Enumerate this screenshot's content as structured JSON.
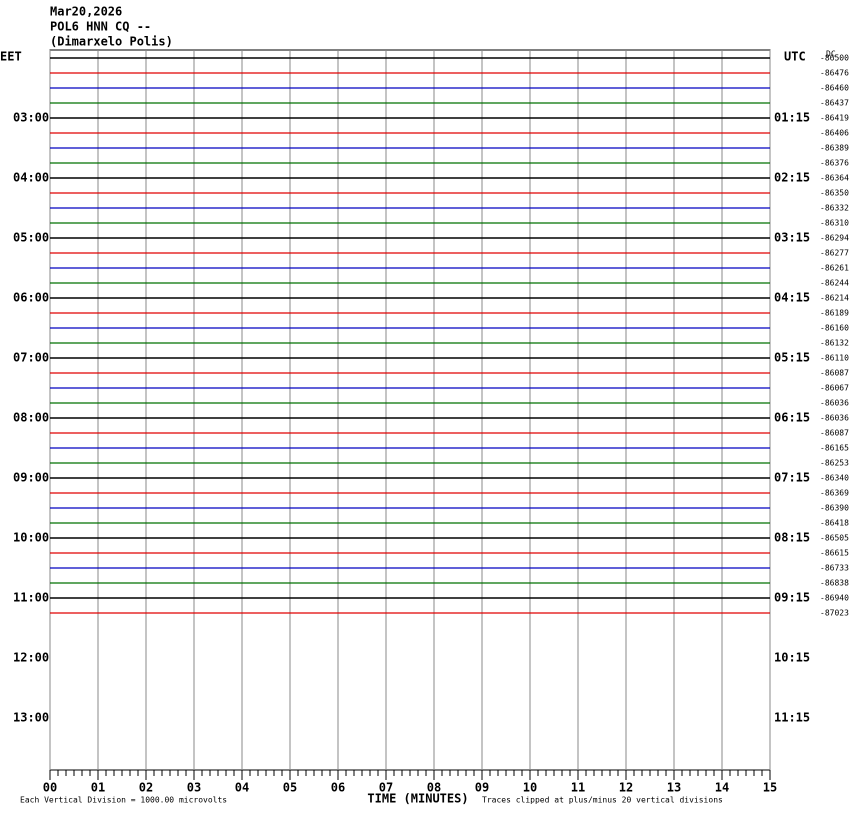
{
  "chart_data": {
    "type": "helicorder",
    "title": "Mar20,2026",
    "subtitle": "POL6 HNN CQ --",
    "station": "(Dimarxelo Polis)",
    "left_timezone": "EET",
    "right_timezone": "UTC",
    "offset_header": "DC",
    "xlabel": "TIME (MINUTES)",
    "scale_note": "Each Vertical Division = 1000.00 microvolts",
    "clip_note": "Traces clipped at plus/minus 20 vertical divisions",
    "xlim": [
      0,
      15
    ],
    "xticks": [
      {
        "value": 0,
        "label": "00"
      },
      {
        "value": 1,
        "label": "01"
      },
      {
        "value": 2,
        "label": "02"
      },
      {
        "value": 3,
        "label": "03"
      },
      {
        "value": 4,
        "label": "04"
      },
      {
        "value": 5,
        "label": "05"
      },
      {
        "value": 6,
        "label": "06"
      },
      {
        "value": 7,
        "label": "07"
      },
      {
        "value": 8,
        "label": "08"
      },
      {
        "value": 9,
        "label": "09"
      },
      {
        "value": 10,
        "label": "10"
      },
      {
        "value": 11,
        "label": "11"
      },
      {
        "value": 12,
        "label": "12"
      },
      {
        "value": 13,
        "label": "13"
      },
      {
        "value": 14,
        "label": "14"
      },
      {
        "value": 15,
        "label": "15"
      }
    ],
    "left_labels": [
      "03:00",
      "04:00",
      "05:00",
      "06:00",
      "07:00",
      "08:00",
      "09:00",
      "10:00",
      "11:00",
      "12:00",
      "13:00"
    ],
    "right_labels": [
      "01:15",
      "02:15",
      "03:15",
      "04:15",
      "05:15",
      "06:15",
      "07:15",
      "08:15",
      "09:15",
      "10:15",
      "11:15"
    ],
    "trace_colors": [
      "#000000",
      "#e00000",
      "#0000c0",
      "#007000"
    ],
    "offsets": [
      -86500,
      -86476,
      -86460,
      -86437,
      -86419,
      -86406,
      -86389,
      -86376,
      -86364,
      -86350,
      -86332,
      -86310,
      -86294,
      -86277,
      -86261,
      -86244,
      -86214,
      -86189,
      -86160,
      -86132,
      -86110,
      -86087,
      -86067,
      -86036,
      -86036,
      -86087,
      -86165,
      -86253,
      -86340,
      -86369,
      -86390,
      -86418,
      -86505,
      -86615,
      -86733,
      -86838,
      -86940,
      -87023
    ]
  }
}
